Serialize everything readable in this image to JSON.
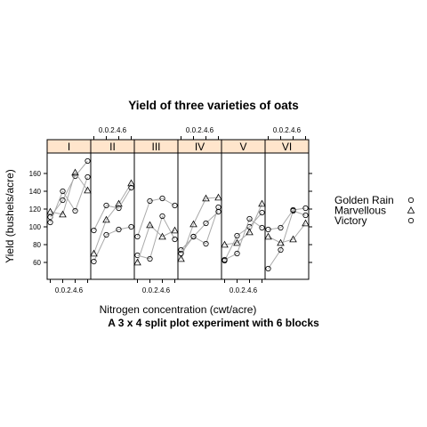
{
  "chart_data": {
    "type": "scatter",
    "title": "Yield of three varieties of oats",
    "subtitle": "A 3 x 4 split plot experiment with 6 blocks",
    "xlabel": "Nitrogen concentration (cwt/acre)",
    "ylabel": "Yield (bushels/acre)",
    "x": [
      0.0,
      0.2,
      0.4,
      0.6
    ],
    "xlim": [
      -0.05,
      0.65
    ],
    "ylim": [
      41,
      183
    ],
    "x_tick_labels": [
      "0.0",
      "0.2",
      "0.4",
      "0.6"
    ],
    "y_ticks": [
      60,
      80,
      100,
      120,
      140,
      160
    ],
    "grid": false,
    "legend_position": "right",
    "legend": [
      {
        "label": "Golden Rain",
        "symbol": "circle"
      },
      {
        "label": "Marvellous",
        "symbol": "triangle"
      },
      {
        "label": "Victory",
        "symbol": "circle"
      }
    ],
    "panels": [
      {
        "name": "I",
        "series": [
          {
            "variety": "Golden Rain",
            "values": [
              111,
              130,
              157,
              174
            ]
          },
          {
            "variety": "Marvellous",
            "values": [
              117,
              114,
              161,
              141
            ]
          },
          {
            "variety": "Victory",
            "values": [
              105,
              140,
              118,
              156
            ]
          }
        ]
      },
      {
        "name": "II",
        "series": [
          {
            "variety": "Golden Rain",
            "values": [
              61,
              91,
              97,
              100
            ]
          },
          {
            "variety": "Marvellous",
            "values": [
              70,
              108,
              126,
              149
            ]
          },
          {
            "variety": "Victory",
            "values": [
              96,
              124,
              121,
              144
            ]
          }
        ]
      },
      {
        "name": "III",
        "series": [
          {
            "variety": "Golden Rain",
            "values": [
              68,
              64,
              112,
              86
            ]
          },
          {
            "variety": "Marvellous",
            "values": [
              60,
              102,
              89,
              96
            ]
          },
          {
            "variety": "Victory",
            "values": [
              89,
              129,
              132,
              124
            ]
          }
        ]
      },
      {
        "name": "IV",
        "series": [
          {
            "variety": "Golden Rain",
            "values": [
              74,
              89,
              81,
              122
            ]
          },
          {
            "variety": "Marvellous",
            "values": [
              64,
              103,
              132,
              133
            ]
          },
          {
            "variety": "Victory",
            "values": [
              70,
              89,
              104,
              117
            ]
          }
        ]
      },
      {
        "name": "V",
        "series": [
          {
            "variety": "Golden Rain",
            "values": [
              62,
              90,
              100,
              116
            ]
          },
          {
            "variety": "Marvellous",
            "values": [
              80,
              82,
              94,
              126
            ]
          },
          {
            "variety": "Victory",
            "values": [
              63,
              70,
              109,
              99
            ]
          }
        ]
      },
      {
        "name": "VI",
        "series": [
          {
            "variety": "Golden Rain",
            "values": [
              53,
              74,
              118,
              113
            ]
          },
          {
            "variety": "Marvellous",
            "values": [
              89,
              82,
              86,
              104
            ]
          },
          {
            "variety": "Victory",
            "values": [
              97,
              99,
              119,
              121
            ]
          }
        ]
      }
    ]
  }
}
